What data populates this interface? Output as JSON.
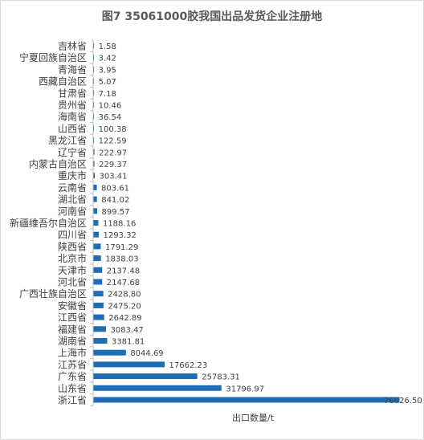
{
  "chart_data": {
    "type": "bar",
    "orientation": "horizontal",
    "title": "图7  35061000胶我国出品发货企业注册地",
    "xlabel": "出口数量/t",
    "ylabel": "",
    "categories": [
      "浙江省",
      "山东省",
      "广东省",
      "江苏省",
      "上海市",
      "湖南省",
      "福建省",
      "江西省",
      "安徽省",
      "广西壮族自治区",
      "河北省",
      "天津市",
      "北京市",
      "陕西省",
      "四川省",
      "新疆维吾尔自治区",
      "河南省",
      "湖北省",
      "云南省",
      "重庆市",
      "内蒙古自治区",
      "辽宁省",
      "黑龙江省",
      "山西省",
      "海南省",
      "贵州省",
      "甘肃省",
      "西藏自治区",
      "青海省",
      "宁夏回族自治区",
      "吉林省"
    ],
    "values": [
      76026.5,
      31796.97,
      25783.31,
      17662.23,
      8044.69,
      3381.81,
      3083.47,
      2642.89,
      2475.2,
      2428.8,
      2147.68,
      2137.48,
      1838.03,
      1791.29,
      1293.32,
      1188.16,
      899.57,
      841.02,
      803.61,
      303.41,
      229.37,
      222.97,
      122.59,
      100.38,
      36.54,
      10.46,
      7.18,
      5.07,
      3.95,
      3.42,
      1.58
    ],
    "value_labels": [
      "76026.50",
      "31796.97",
      "25783.31",
      "17662.23",
      "8044.69",
      "3381.81",
      "3083.47",
      "2642.89",
      "2475.20",
      "2428.80",
      "2147.68",
      "2137.48",
      "1838.03",
      "1791.29",
      "1293.32",
      "1188.16",
      "899.57",
      "841.02",
      "803.61",
      "303.41",
      "229.37",
      "222.97",
      "122.59",
      "100.38",
      "36.54",
      "10.46",
      "7.18",
      "5.07",
      "3.95",
      "3.42",
      "1.58"
    ],
    "bar_color": "#1F6EB5",
    "xlim": [
      0,
      76026.5
    ],
    "grid": false,
    "legend": "none"
  }
}
